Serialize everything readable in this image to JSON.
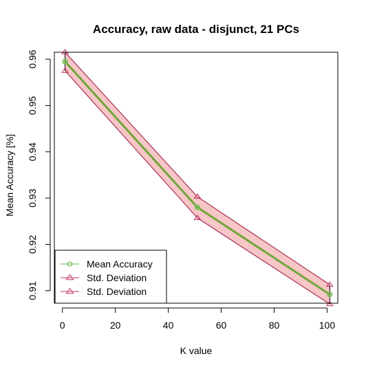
{
  "chart_data": {
    "type": "line",
    "title": "Accuracy, raw data - disjunct, 21 PCs",
    "xlabel": "K value",
    "ylabel": "Mean Accuracy [%]",
    "xlim": [
      -3.04,
      104.04
    ],
    "ylim": [
      0.9073,
      0.9615
    ],
    "x_ticks": [
      0,
      20,
      40,
      60,
      80,
      100
    ],
    "y_ticks": [
      0.91,
      0.92,
      0.93,
      0.94,
      0.95,
      0.96
    ],
    "x_tick_labels": [
      "0",
      "20",
      "40",
      "60",
      "80",
      "100"
    ],
    "y_tick_labels": [
      "0.91",
      "0.92",
      "0.93",
      "0.94",
      "0.95",
      "0.96"
    ],
    "x": [
      1,
      51,
      101
    ],
    "series": [
      {
        "name": "Mean Accuracy",
        "values": [
          0.9595,
          0.928,
          0.9092
        ],
        "color": "#7fbf5f",
        "marker": "circle"
      },
      {
        "name": "Std. Deviation",
        "values": [
          0.9615,
          0.9303,
          0.9113
        ],
        "color": "#c03060",
        "marker": "triangle"
      },
      {
        "name": "Std. Deviation",
        "values": [
          0.9575,
          0.9257,
          0.9071
        ],
        "color": "#c03060",
        "marker": "triangle"
      }
    ],
    "band_fill": "#f7c6c6",
    "trend_line_color": "#6fa63a",
    "legend": {
      "position": "bottom-left",
      "entries": [
        "Mean Accuracy",
        "Std. Deviation",
        "Std. Deviation"
      ]
    },
    "grid": false
  }
}
